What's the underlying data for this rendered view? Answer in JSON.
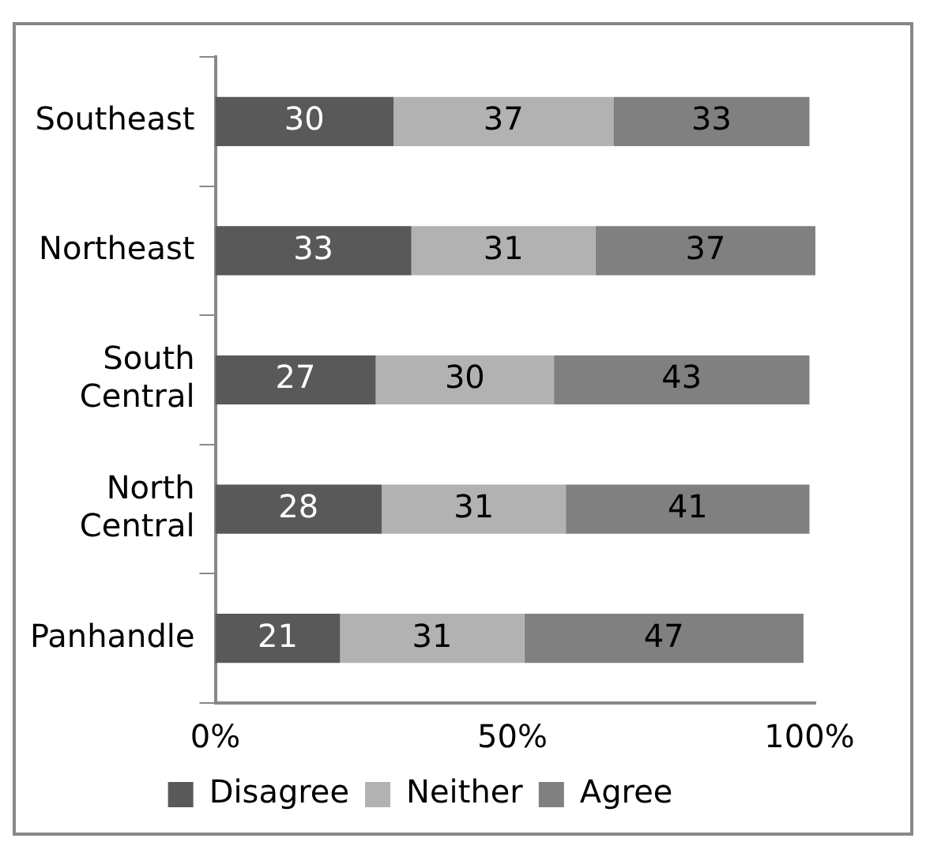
{
  "chart_data": {
    "type": "bar",
    "orientation": "horizontal",
    "stacked": true,
    "categories": [
      "Southeast",
      "Northeast",
      "South Central",
      "North Central",
      "Panhandle"
    ],
    "series": [
      {
        "name": "Disagree",
        "color": "#595959",
        "values": [
          30,
          33,
          27,
          28,
          21
        ]
      },
      {
        "name": "Neither",
        "color": "#b2b2b2",
        "values": [
          37,
          31,
          30,
          31,
          31
        ]
      },
      {
        "name": "Agree",
        "color": "#808080",
        "values": [
          33,
          37,
          43,
          41,
          47
        ]
      }
    ],
    "xlim": [
      0,
      101
    ],
    "xticks": [
      {
        "value": 0,
        "label": "0%"
      },
      {
        "value": 50,
        "label": "50%"
      },
      {
        "value": 100,
        "label": "100%"
      }
    ],
    "data_labels": true,
    "grid": false,
    "legend": "bottom"
  }
}
